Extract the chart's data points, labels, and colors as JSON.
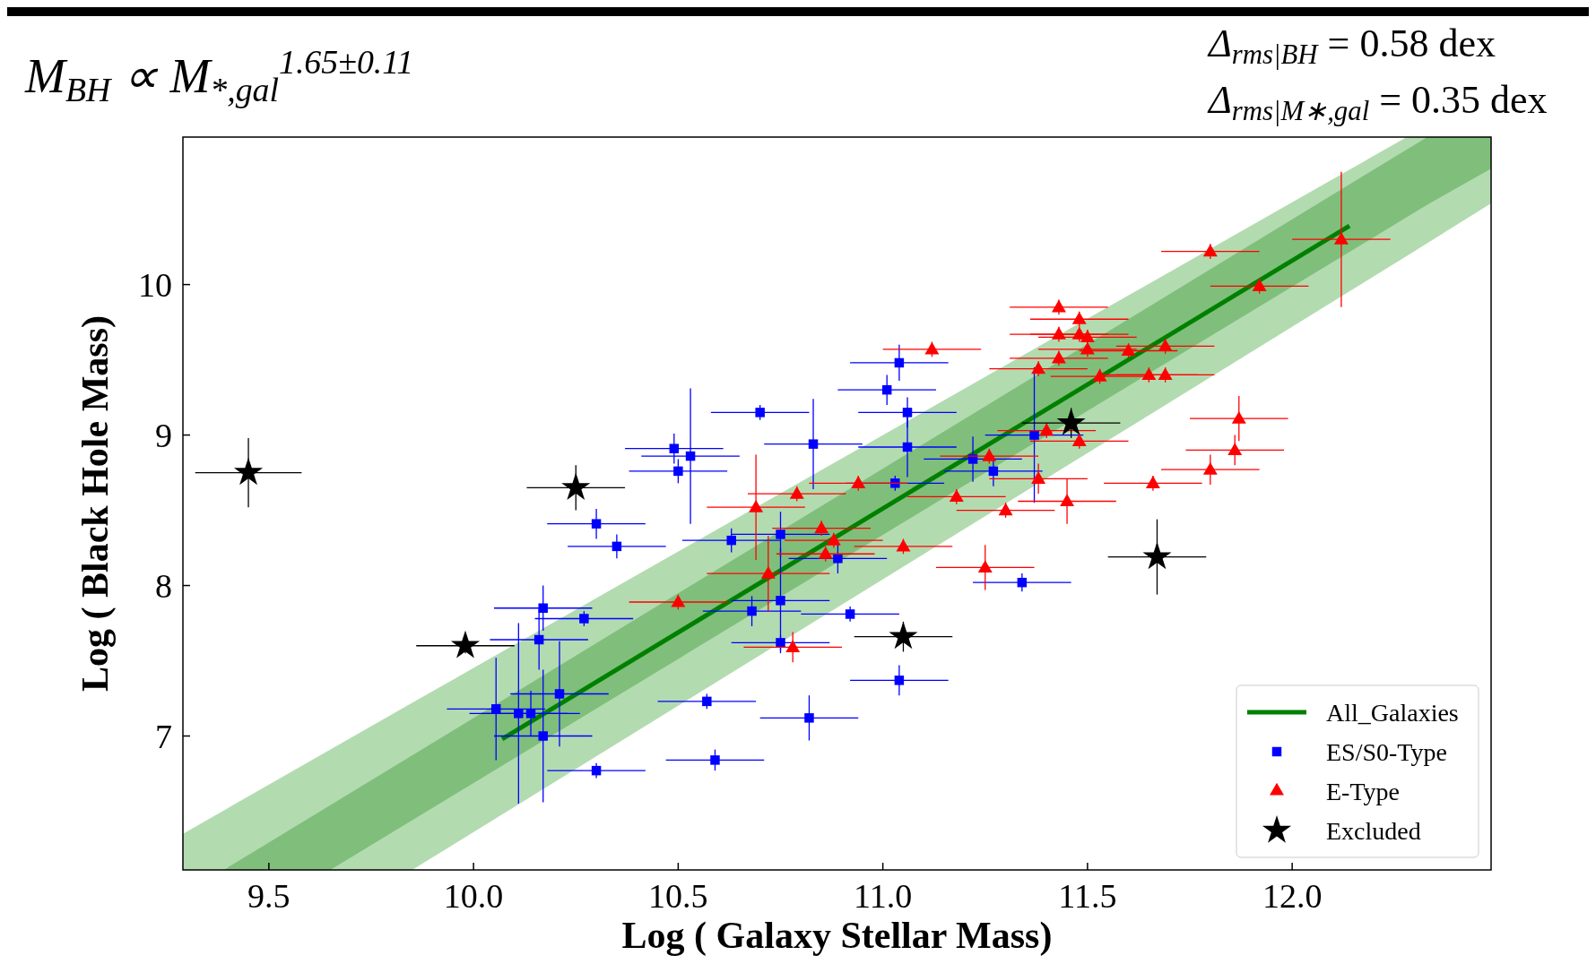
{
  "chart_data": {
    "type": "scatter",
    "xlabel": "Log ( Galaxy Stellar Mass)",
    "ylabel": "Log ( Black Hole Mass)",
    "annotations": [
      "M$_{BH}$ ∝ M$_{*,gal}$$^{1.65±0.11}$",
      "Δ$_{rms|BH}$ = 0.58 dex",
      "Δ$_{rms|M∗,gal}$ = 0.35 dex"
    ],
    "xlim": [
      9.29,
      12.486
    ],
    "ylim": [
      6.11,
      10.98
    ],
    "xticks": [
      9.5,
      {
        "value": 10,
        "label": "10.0"
      },
      10.5,
      {
        "value": 11,
        "label": "11.0"
      },
      11.5,
      {
        "value": 12,
        "label": "12.0"
      }
    ],
    "yticks": [
      7,
      8,
      9,
      10
    ],
    "grid": false,
    "legend": "bottom right",
    "series": [
      {
        "type": "area",
        "color": "#b3dbb0",
        "x": [
          9.29,
          9.85,
          12.28,
          12.486
        ],
        "values": [
          null,
          null,
          null,
          null
        ],
        "lower": [
          6.11,
          6.11,
          10.19,
          10.54
        ],
        "upper": [
          6.35,
          7.22,
          10.98,
          10.98
        ]
      },
      {
        "type": "area",
        "color": "#7fbf7b",
        "x": [
          9.39,
          9.65,
          12.33,
          12.486
        ],
        "values": [
          null,
          null,
          null,
          null
        ],
        "lower": [
          6.11,
          6.11,
          10.53,
          10.77
        ],
        "upper": [
          6.11,
          6.54,
          10.98,
          10.98
        ]
      },
      {
        "type": "line",
        "name": "All_Galaxies",
        "color": "#008000",
        "x": [
          10.07,
          12.14
        ],
        "values": [
          6.98,
          10.39
        ],
        "line_style": "solid",
        "marker": "none"
      },
      {
        "name": "ES/S0-Type",
        "color": "#0000ff",
        "marker": "square",
        "x": [
          10.055,
          10.11,
          10.14,
          10.17,
          10.21,
          10.16,
          10.17,
          10.27,
          10.3,
          10.35,
          10.3,
          10.49,
          10.5,
          10.53,
          10.57,
          10.59,
          10.63,
          10.7,
          10.68,
          10.75,
          10.75,
          10.75,
          10.83,
          10.82,
          10.89,
          10.92,
          11.01,
          11.04,
          11.06,
          11.06,
          11.03,
          11.04,
          11.22,
          11.27,
          11.34,
          11.37
        ],
        "values": [
          7.18,
          7.15,
          7.15,
          7.0,
          7.28,
          7.64,
          7.85,
          7.78,
          8.41,
          8.26,
          6.77,
          8.91,
          8.76,
          8.86,
          7.23,
          6.84,
          8.3,
          9.15,
          7.83,
          8.34,
          7.9,
          7.62,
          8.94,
          7.12,
          8.18,
          7.81,
          9.3,
          9.48,
          8.92,
          9.15,
          8.68,
          7.37,
          8.84,
          8.76,
          8.02,
          9.0
        ],
        "errors": [
          0.34,
          0.6,
          0.15,
          0.44,
          0.35,
          0.2,
          0.15,
          0.05,
          0.1,
          0.08,
          0.05,
          0.1,
          0.08,
          0.45,
          0.05,
          0.07,
          0.08,
          0.05,
          0.1,
          0.15,
          0.35,
          0.05,
          0.3,
          0.15,
          0.1,
          0.05,
          0.1,
          0.12,
          0.2,
          0.1,
          0.05,
          0.1,
          0.15,
          0.1,
          0.06,
          0.45
        ],
        "xerrors": [
          0.12,
          0.12,
          0.12,
          0.12,
          0.12,
          0.12,
          0.12,
          0.12,
          0.12,
          0.12,
          0.12,
          0.12,
          0.12,
          0.12,
          0.12,
          0.12,
          0.12,
          0.12,
          0.12,
          0.12,
          0.12,
          0.12,
          0.12,
          0.12,
          0.12,
          0.12,
          0.12,
          0.12,
          0.12,
          0.12,
          0.12,
          0.12,
          0.12,
          0.12,
          0.12,
          0.12
        ]
      },
      {
        "name": "E-Type",
        "color": "#ff0000",
        "marker": "triangle",
        "x": [
          11.12,
          11.43,
          11.43,
          11.48,
          11.48,
          11.5,
          11.5,
          11.43,
          11.38,
          11.53,
          11.6,
          11.69,
          11.65,
          11.69,
          11.8,
          11.92,
          12.12,
          11.4,
          11.48,
          11.87,
          11.86,
          11.8,
          11.66,
          11.38,
          11.45,
          11.26,
          11.18,
          11.3,
          11.05,
          10.94,
          10.79,
          10.69,
          10.85,
          10.88,
          10.86,
          10.72,
          10.5,
          10.78,
          11.25
        ],
        "values": [
          9.57,
          9.85,
          9.67,
          9.77,
          9.67,
          9.65,
          9.57,
          9.51,
          9.44,
          9.39,
          9.56,
          9.59,
          9.4,
          9.4,
          10.22,
          9.99,
          10.3,
          9.03,
          8.96,
          9.11,
          8.9,
          8.77,
          8.68,
          8.71,
          8.56,
          8.86,
          8.59,
          8.5,
          8.26,
          8.68,
          8.61,
          8.52,
          8.38,
          8.3,
          8.21,
          8.08,
          7.89,
          7.59,
          8.12
        ],
        "errors": [
          0.05,
          0.05,
          0.05,
          0.05,
          0.05,
          0.05,
          0.05,
          0.05,
          0.05,
          0.05,
          0.05,
          0.05,
          0.05,
          0.05,
          0.05,
          0.05,
          0.45,
          0.05,
          0.05,
          0.15,
          0.1,
          0.1,
          0.05,
          0.1,
          0.15,
          0.05,
          0.05,
          0.05,
          0.05,
          0.05,
          0.05,
          0.35,
          0.05,
          0.05,
          0.05,
          0.25,
          0.05,
          0.1,
          0.15
        ],
        "xerrors": [
          0.12,
          0.12,
          0.12,
          0.12,
          0.12,
          0.12,
          0.12,
          0.12,
          0.12,
          0.12,
          0.12,
          0.12,
          0.12,
          0.12,
          0.12,
          0.12,
          0.12,
          0.12,
          0.12,
          0.12,
          0.12,
          0.12,
          0.12,
          0.12,
          0.12,
          0.12,
          0.12,
          0.12,
          0.12,
          0.12,
          0.12,
          0.12,
          0.12,
          0.12,
          0.12,
          0.15,
          0.12,
          0.12,
          0.12
        ]
      },
      {
        "name": "Excluded",
        "color": "#000000",
        "marker": "star",
        "x": [
          9.45,
          10.25,
          9.98,
          11.05,
          11.46,
          11.67
        ],
        "values": [
          8.75,
          8.65,
          7.6,
          7.66,
          9.08,
          8.19
        ],
        "errors": [
          0.23,
          0.15,
          0.05,
          0.1,
          0.1,
          0.25
        ],
        "xerrors": [
          0.13,
          0.12,
          0.12,
          0.12,
          0.12,
          0.12
        ]
      }
    ]
  }
}
